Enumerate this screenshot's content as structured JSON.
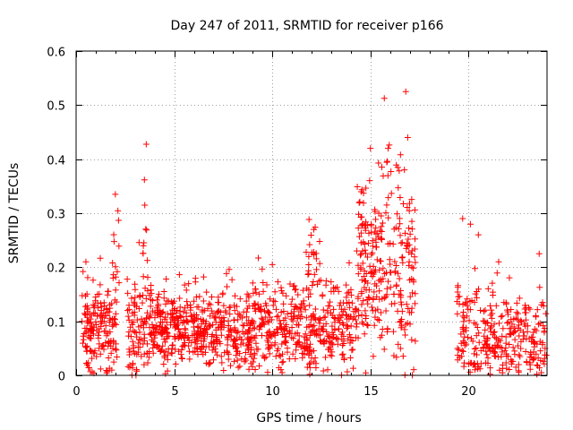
{
  "chart_data": {
    "type": "scatter",
    "title": "Day 247 of 2011, SRMTID for receiver p166",
    "xlabel": "GPS time / hours",
    "ylabel": "SRMTID / TECUs",
    "xlim": [
      0,
      24
    ],
    "ylim": [
      0,
      0.6
    ],
    "xticks": [
      0,
      5,
      10,
      15,
      20
    ],
    "yticks": [
      0,
      0.1,
      0.2,
      0.3,
      0.4,
      0.5,
      0.6
    ],
    "xtick_labels": [
      "0",
      "5",
      "10",
      "15",
      "20"
    ],
    "ytick_labels": [
      "0",
      "0.1",
      "0.2",
      "0.3",
      "0.4",
      "0.5",
      "0.6"
    ],
    "grid": true,
    "marker": "+",
    "color": "#ff0000",
    "series": [
      {
        "name": "SRMTID",
        "clusters": [
          {
            "x_range": [
              0.3,
              2.1
            ],
            "base": 0.08,
            "spread": 0.07,
            "count": 170
          },
          {
            "x_range": [
              1.8,
              2.2
            ],
            "base": 0.23,
            "spread": 0.1,
            "count": 12
          },
          {
            "x_range": [
              2.6,
              3.9
            ],
            "base": 0.08,
            "spread": 0.07,
            "count": 110
          },
          {
            "x_range": [
              3.4,
              3.7
            ],
            "base": 0.24,
            "spread": 0.08,
            "count": 10
          },
          {
            "x_range": [
              3.9,
              6.3
            ],
            "base": 0.085,
            "spread": 0.05,
            "count": 230
          },
          {
            "x_range": [
              6.3,
              9.0
            ],
            "base": 0.08,
            "spread": 0.05,
            "count": 230
          },
          {
            "x_range": [
              9.0,
              12.3
            ],
            "base": 0.085,
            "spread": 0.055,
            "count": 270
          },
          {
            "x_range": [
              11.7,
              12.3
            ],
            "base": 0.2,
            "spread": 0.06,
            "count": 25
          },
          {
            "x_range": [
              12.3,
              14.3
            ],
            "base": 0.1,
            "spread": 0.06,
            "count": 150
          },
          {
            "x_range": [
              14.3,
              15.6
            ],
            "base": 0.19,
            "spread": 0.12,
            "count": 140
          },
          {
            "x_range": [
              15.6,
              17.3
            ],
            "base": 0.2,
            "spread": 0.13,
            "count": 140
          },
          {
            "x_range": [
              19.4,
              21.3
            ],
            "base": 0.08,
            "spread": 0.07,
            "count": 130
          },
          {
            "x_range": [
              21.3,
              24.0
            ],
            "base": 0.07,
            "spread": 0.06,
            "count": 170
          }
        ],
        "points": [
          [
            16.8,
            0.525
          ],
          [
            15.0,
            0.42
          ],
          [
            15.9,
            0.42
          ],
          [
            16.9,
            0.44
          ],
          [
            2.0,
            0.335
          ],
          [
            3.5,
            0.315
          ],
          [
            19.7,
            0.29
          ],
          [
            20.5,
            0.26
          ],
          [
            7.8,
            0.196
          ],
          [
            10.0,
            0.205
          ],
          [
            23.6,
            0.225
          ],
          [
            0.5,
            0.21
          ]
        ]
      }
    ]
  }
}
